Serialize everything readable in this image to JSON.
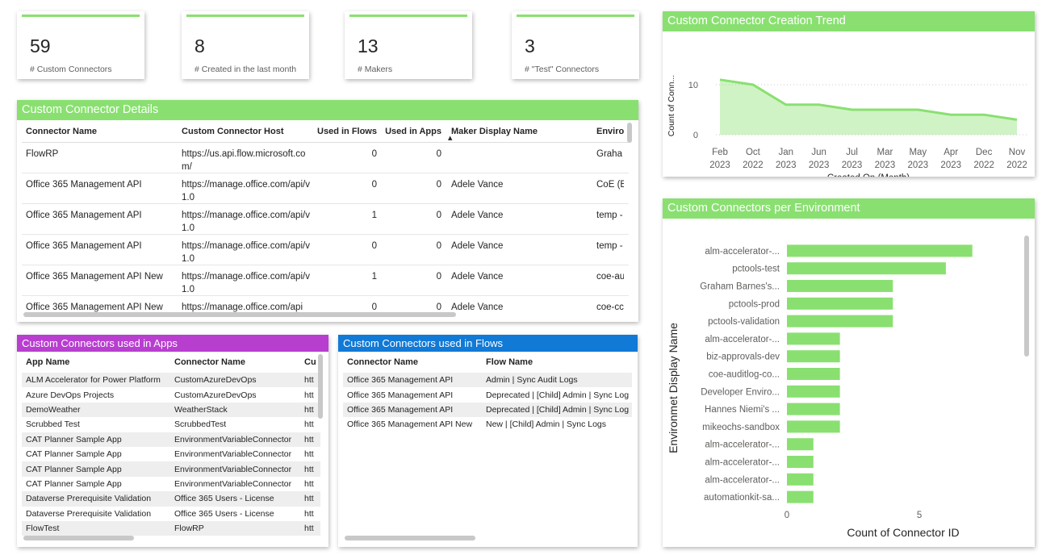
{
  "cards": [
    {
      "value": "59",
      "label": "# Custom Connectors"
    },
    {
      "value": "8",
      "label": "# Created in the last month"
    },
    {
      "value": "13",
      "label": "# Makers"
    },
    {
      "value": "3",
      "label": "# \"Test\" Connectors"
    }
  ],
  "details": {
    "title": "Custom Connector Details",
    "columns": [
      "Connector Name",
      "Custom Connector Host",
      "Used in Flows",
      "Used in Apps",
      "Maker Display Name",
      "Enviro"
    ],
    "rows": [
      [
        "FlowRP",
        "https://us.api.flow.microsoft.com/",
        "0",
        "0",
        "",
        "Graha"
      ],
      [
        "Office 365 Management API",
        "https://manage.office.com/api/v1.0",
        "0",
        "0",
        "Adele Vance",
        "CoE (B"
      ],
      [
        "Office 365 Management API",
        "https://manage.office.com/api/v1.0",
        "1",
        "0",
        "Adele Vance",
        "temp -"
      ],
      [
        "Office 365 Management API",
        "https://manage.office.com/api/v1.0",
        "0",
        "0",
        "Adele Vance",
        "temp -"
      ],
      [
        "Office 365 Management API New",
        "https://manage.office.com/api/v1.0",
        "1",
        "0",
        "Adele Vance",
        "coe-au"
      ],
      [
        "Office 365 Management API New",
        "https://manage.office.com/api",
        "0",
        "0",
        "Adele Vance",
        "coe-cc"
      ]
    ]
  },
  "apps": {
    "title": "Custom Connectors used in Apps",
    "columns": [
      "App Name",
      "Connector Name",
      "Cu"
    ],
    "rows": [
      [
        "ALM Accelerator for Power Platform",
        "CustomAzureDevOps",
        "htt"
      ],
      [
        "Azure DevOps Projects",
        "CustomAzureDevOps",
        "htt"
      ],
      [
        "DemoWeather",
        "WeatherStack",
        "htt"
      ],
      [
        "Scrubbed Test",
        "ScrubbedTest",
        "htt"
      ],
      [
        "CAT Planner Sample App",
        "EnvironmentVariableConnector",
        "htt"
      ],
      [
        "CAT Planner Sample App",
        "EnvironmentVariableConnector",
        "htt"
      ],
      [
        "CAT Planner Sample App",
        "EnvironmentVariableConnector",
        "htt"
      ],
      [
        "CAT Planner Sample App",
        "EnvironmentVariableConnector",
        "htt"
      ],
      [
        "Dataverse Prerequisite Validation",
        "Office 365 Users - License",
        "htt"
      ],
      [
        "Dataverse Prerequisite Validation",
        "Office 365 Users - License",
        "htt"
      ],
      [
        "FlowTest",
        "FlowRP",
        "htt"
      ]
    ]
  },
  "flows": {
    "title": "Custom Connectors used in Flows",
    "columns": [
      "Connector Name",
      "Flow Name"
    ],
    "rows": [
      [
        "Office 365 Management API",
        "Admin | Sync Audit Logs"
      ],
      [
        "Office 365 Management API",
        "Deprecated | [Child] Admin | Sync Log"
      ],
      [
        "Office 365 Management API",
        "Deprecated | [Child] Admin | Sync Log"
      ],
      [
        "Office 365 Management API New",
        "New | [Child] Admin | Sync Logs"
      ]
    ]
  },
  "trend": {
    "title": "Custom Connector Creation Trend",
    "chart_data": {
      "type": "area",
      "categories": [
        "Feb 2023",
        "Oct 2022",
        "Jan 2023",
        "Jun 2023",
        "Jul 2023",
        "Mar 2023",
        "May 2023",
        "Apr 2023",
        "Dec 2022",
        "Nov 2022"
      ],
      "tick_top": [
        "Feb",
        "Oct",
        "Jan",
        "Jun",
        "Jul",
        "Mar",
        "May",
        "Apr",
        "Dec",
        "Nov"
      ],
      "tick_bottom": [
        "2023",
        "2022",
        "2023",
        "2023",
        "2023",
        "2023",
        "2023",
        "2023",
        "2022",
        "2022"
      ],
      "values": [
        11,
        10,
        6,
        6,
        5,
        5,
        5,
        4,
        4,
        3
      ],
      "yticks": [
        "0",
        "10"
      ],
      "ylim": [
        0,
        12
      ],
      "xlabel": "Created On (Month)",
      "ylabel": "Count of Conn...",
      "color": "#89e070"
    }
  },
  "env": {
    "title": "Custom Connectors per Environment",
    "chart_data": {
      "type": "bar",
      "orientation": "horizontal",
      "categories": [
        "alm-accelerator-...",
        "pctools-test",
        "Graham Barnes's...",
        "pctools-prod",
        "pctools-validation",
        "alm-accelerator-...",
        "biz-approvals-dev",
        "coe-auditlog-co...",
        "Developer Enviro...",
        "Hannes Niemi's ...",
        "mikeochs-sandbox",
        "alm-accelerator-...",
        "alm-accelerator-...",
        "alm-accelerator-...",
        "automationkit-sa..."
      ],
      "values": [
        7,
        6,
        4,
        4,
        4,
        2,
        2,
        2,
        2,
        2,
        2,
        1,
        1,
        1,
        1
      ],
      "xticks": [
        "0",
        "5"
      ],
      "xlim": [
        0,
        7.8
      ],
      "xlabel": "Count of Connector ID",
      "ylabel": "Environmet Display Name",
      "color": "#89e070"
    }
  }
}
